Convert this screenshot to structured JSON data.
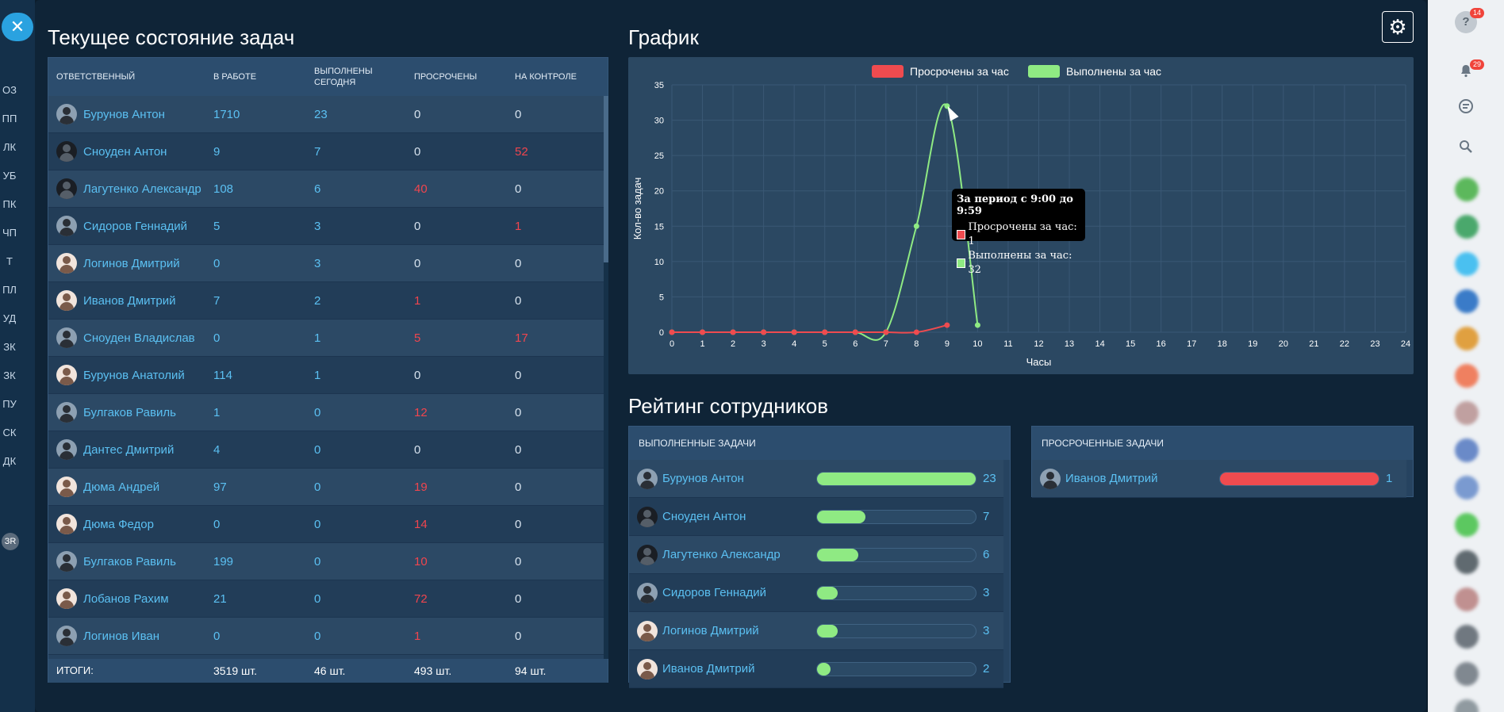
{
  "left_nav": {
    "close_icon": "✕",
    "items": [
      "ОЗ",
      "ПП",
      "ЛК",
      "УБ",
      "ПК",
      "ЧП",
      "Т",
      "ПЛ",
      "УД",
      "ЗК",
      "ЗК",
      "ПУ",
      "СК",
      "ДК"
    ],
    "bubble": "ЗR"
  },
  "right_bar": {
    "help_icon": "?",
    "help_badge": "14",
    "bell_badge": "29"
  },
  "tasks": {
    "title": "Текущее состояние задач",
    "columns": [
      "ответственный",
      "в работе",
      "выполнены сегодня",
      "просрочены",
      "на контроле"
    ],
    "rows": [
      {
        "name": "Бурунов Антон",
        "in_work": "1710",
        "done": "23",
        "overdue": "0",
        "control": "0",
        "overdue_red": false,
        "control_red": false
      },
      {
        "name": "Сноуден Антон",
        "in_work": "9",
        "done": "7",
        "overdue": "0",
        "control": "52",
        "overdue_red": false,
        "control_red": true
      },
      {
        "name": "Лагутенко Александр",
        "in_work": "108",
        "done": "6",
        "overdue": "40",
        "control": "0",
        "overdue_red": true,
        "control_red": false
      },
      {
        "name": "Сидоров Геннадий",
        "in_work": "5",
        "done": "3",
        "overdue": "0",
        "control": "1",
        "overdue_red": false,
        "control_red": true
      },
      {
        "name": "Логинов Дмитрий",
        "in_work": "0",
        "done": "3",
        "overdue": "0",
        "control": "0",
        "overdue_red": false,
        "control_red": false
      },
      {
        "name": "Иванов Дмитрий",
        "in_work": "7",
        "done": "2",
        "overdue": "1",
        "control": "0",
        "overdue_red": true,
        "control_red": false
      },
      {
        "name": "Сноуден Владислав",
        "in_work": "0",
        "done": "1",
        "overdue": "5",
        "control": "17",
        "overdue_red": true,
        "control_red": true
      },
      {
        "name": "Бурунов Анатолий",
        "in_work": "114",
        "done": "1",
        "overdue": "0",
        "control": "0",
        "overdue_red": false,
        "control_red": false
      },
      {
        "name": "Булгаков Равиль",
        "in_work": "1",
        "done": "0",
        "overdue": "12",
        "control": "0",
        "overdue_red": true,
        "control_red": false
      },
      {
        "name": "Дантес Дмитрий",
        "in_work": "4",
        "done": "0",
        "overdue": "0",
        "control": "0",
        "overdue_red": false,
        "control_red": false
      },
      {
        "name": "Дюма Андрей",
        "in_work": "97",
        "done": "0",
        "overdue": "19",
        "control": "0",
        "overdue_red": true,
        "control_red": false
      },
      {
        "name": "Дюма Федор",
        "in_work": "0",
        "done": "0",
        "overdue": "14",
        "control": "0",
        "overdue_red": true,
        "control_red": false
      },
      {
        "name": "Булгаков Равиль",
        "in_work": "199",
        "done": "0",
        "overdue": "10",
        "control": "0",
        "overdue_red": true,
        "control_red": false
      },
      {
        "name": "Лобанов Рахим",
        "in_work": "21",
        "done": "0",
        "overdue": "72",
        "control": "0",
        "overdue_red": true,
        "control_red": false
      },
      {
        "name": "Логинов Иван",
        "in_work": "0",
        "done": "0",
        "overdue": "1",
        "control": "0",
        "overdue_red": true,
        "control_red": false
      }
    ],
    "totals": {
      "label": "итоги:",
      "in_work": "3519 шт.",
      "done": "46 шт.",
      "overdue": "493 шт.",
      "control": "94 шт."
    }
  },
  "chart_section": {
    "title": "График"
  },
  "chart_data": {
    "type": "line",
    "title": "",
    "xlabel": "Часы",
    "ylabel": "Кол-во задач",
    "xlim": [
      0,
      24
    ],
    "ylim": [
      0,
      35
    ],
    "x_ticks": [
      0,
      1,
      2,
      3,
      4,
      5,
      6,
      7,
      8,
      9,
      10,
      11,
      12,
      13,
      14,
      15,
      16,
      17,
      18,
      19,
      20,
      21,
      22,
      23,
      24
    ],
    "y_ticks": [
      0,
      5,
      10,
      15,
      20,
      25,
      30,
      35
    ],
    "series": [
      {
        "name": "Просрочены за час",
        "color": "#ef4b4f",
        "x": [
          0,
          1,
          2,
          3,
          4,
          5,
          6,
          7,
          8,
          9
        ],
        "values": [
          0,
          0,
          0,
          0,
          0,
          0,
          0,
          0,
          0,
          1
        ]
      },
      {
        "name": "Выполнены за час",
        "color": "#8fea83",
        "x": [
          0,
          1,
          2,
          3,
          4,
          5,
          6,
          7,
          8,
          9,
          10
        ],
        "values": [
          0,
          0,
          0,
          0,
          0,
          0,
          0,
          0,
          15,
          32,
          1
        ]
      }
    ],
    "tooltip": {
      "title": "За период с 9:00 до 9:59",
      "lines": [
        "Просрочены за час: 1",
        "Выполнены за час: 32"
      ]
    }
  },
  "rating": {
    "title": "Рейтинг сотрудников",
    "done_panel": {
      "header": "выполненные задачи",
      "max": 23,
      "items": [
        {
          "name": "Бурунов Антон",
          "value": 23
        },
        {
          "name": "Сноуден Антон",
          "value": 7
        },
        {
          "name": "Лагутенко Александр",
          "value": 6
        },
        {
          "name": "Сидоров Геннадий",
          "value": 3
        },
        {
          "name": "Логинов Дмитрий",
          "value": 3
        },
        {
          "name": "Иванов Дмитрий",
          "value": 2
        }
      ]
    },
    "overdue_panel": {
      "header": "просроченные задачи",
      "max": 1,
      "items": [
        {
          "name": "Иванов Дмитрий",
          "value": 1
        }
      ]
    }
  },
  "settings": {
    "gear_icon": "⚙"
  }
}
